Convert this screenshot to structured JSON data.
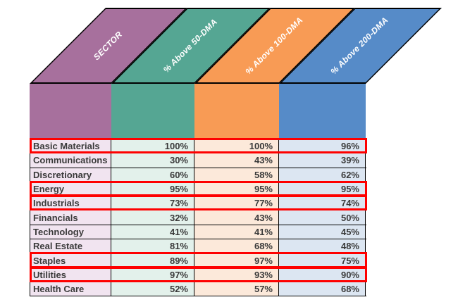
{
  "header": {
    "columns": [
      {
        "label": "SECTOR",
        "color": "#A7709D",
        "tint": "#F1E4F0"
      },
      {
        "label": "% Above 50-DMA",
        "color": "#55A693",
        "tint": "#E3F1EB"
      },
      {
        "label": "% Above 100-DMA",
        "color": "#F89B55",
        "tint": "#FCE9DA"
      },
      {
        "label": "% Above 200-DMA",
        "color": "#568BC8",
        "tint": "#DCE6F2"
      }
    ]
  },
  "rows": [
    {
      "sector": "Basic Materials",
      "values": [
        "100%",
        "100%",
        "96%"
      ],
      "highlighted": true
    },
    {
      "sector": "Communications",
      "values": [
        "30%",
        "43%",
        "39%"
      ],
      "highlighted": false
    },
    {
      "sector": "Discretionary",
      "values": [
        "60%",
        "58%",
        "62%"
      ],
      "highlighted": false
    },
    {
      "sector": "Energy",
      "values": [
        "95%",
        "95%",
        "95%"
      ],
      "highlighted": true
    },
    {
      "sector": "Industrials",
      "values": [
        "73%",
        "77%",
        "74%"
      ],
      "highlighted": true
    },
    {
      "sector": "Financials",
      "values": [
        "32%",
        "43%",
        "50%"
      ],
      "highlighted": false
    },
    {
      "sector": "Technology",
      "values": [
        "41%",
        "41%",
        "45%"
      ],
      "highlighted": false
    },
    {
      "sector": "Real Estate",
      "values": [
        "81%",
        "68%",
        "48%"
      ],
      "highlighted": false
    },
    {
      "sector": "Staples",
      "values": [
        "89%",
        "97%",
        "75%"
      ],
      "highlighted": true
    },
    {
      "sector": "Utilities",
      "values": [
        "97%",
        "93%",
        "90%"
      ],
      "highlighted": true
    },
    {
      "sector": "Health Care",
      "values": [
        "52%",
        "57%",
        "68%"
      ],
      "highlighted": false
    }
  ],
  "colors": {
    "grid": "#000000",
    "text": "#3A3A3A",
    "header_text": "#FFFFFF",
    "highlight_border": "#FE0000",
    "background": "#FFFFFF"
  },
  "chart_data": {
    "type": "table",
    "columns": [
      "SECTOR",
      "% Above 50-DMA",
      "% Above 100-DMA",
      "% Above 200-DMA"
    ],
    "rows": [
      {
        "sector": "Basic Materials",
        "above_50dma": 100,
        "above_100dma": 100,
        "above_200dma": 96,
        "highlighted": true
      },
      {
        "sector": "Communications",
        "above_50dma": 30,
        "above_100dma": 43,
        "above_200dma": 39,
        "highlighted": false
      },
      {
        "sector": "Discretionary",
        "above_50dma": 60,
        "above_100dma": 58,
        "above_200dma": 62,
        "highlighted": false
      },
      {
        "sector": "Energy",
        "above_50dma": 95,
        "above_100dma": 95,
        "above_200dma": 95,
        "highlighted": true
      },
      {
        "sector": "Industrials",
        "above_50dma": 73,
        "above_100dma": 77,
        "above_200dma": 74,
        "highlighted": true
      },
      {
        "sector": "Financials",
        "above_50dma": 32,
        "above_100dma": 43,
        "above_200dma": 50,
        "highlighted": false
      },
      {
        "sector": "Technology",
        "above_50dma": 41,
        "above_100dma": 41,
        "above_200dma": 45,
        "highlighted": false
      },
      {
        "sector": "Real Estate",
        "above_50dma": 81,
        "above_100dma": 68,
        "above_200dma": 48,
        "highlighted": false
      },
      {
        "sector": "Staples",
        "above_50dma": 89,
        "above_100dma": 97,
        "above_200dma": 75,
        "highlighted": true
      },
      {
        "sector": "Utilities",
        "above_50dma": 97,
        "above_100dma": 93,
        "above_200dma": 90,
        "highlighted": true
      },
      {
        "sector": "Health Care",
        "above_50dma": 52,
        "above_100dma": 57,
        "above_200dma": 68,
        "highlighted": false
      }
    ],
    "units": "percent of stocks above moving average",
    "legend_position": "none",
    "grid": true
  }
}
